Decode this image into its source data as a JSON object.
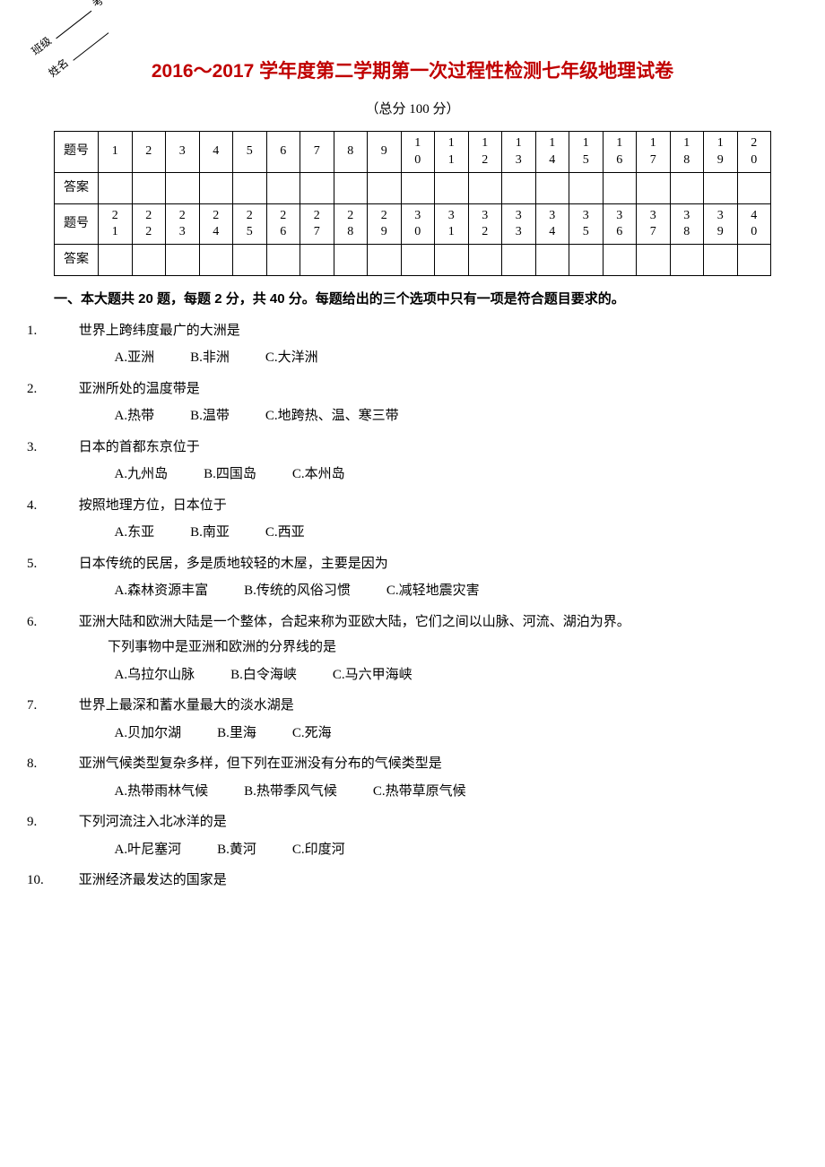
{
  "binding": {
    "class_label": "班级",
    "exam_no_label": "考号",
    "name_label": "姓名"
  },
  "title": "2016～2017 学年度第二学期第一次过程性检测七年级地理试卷",
  "subtitle": "（总分 100 分）",
  "answer_sheet": {
    "row_labels": {
      "number": "题号",
      "answer": "答案"
    },
    "row1_numbers": [
      "1",
      "2",
      "3",
      "4",
      "5",
      "6",
      "7",
      "8",
      "9",
      "1\n0",
      "1\n1",
      "1\n2",
      "1\n3",
      "1\n4",
      "1\n5",
      "1\n6",
      "1\n7",
      "1\n8",
      "1\n9",
      "2\n0"
    ],
    "row2_numbers": [
      "2\n1",
      "2\n2",
      "2\n3",
      "2\n4",
      "2\n5",
      "2\n6",
      "2\n7",
      "2\n8",
      "2\n9",
      "3\n0",
      "3\n1",
      "3\n2",
      "3\n3",
      "3\n4",
      "3\n5",
      "3\n6",
      "3\n7",
      "3\n8",
      "3\n9",
      "4\n0"
    ]
  },
  "section1_header": "一、本大题共 20 题，每题 2 分，共 40 分。每题给出的三个选项中只有一项是符合题目要求的。",
  "questions": [
    {
      "num": "1.",
      "stem": "世界上跨纬度最广的大洲是",
      "opts": [
        "A.亚洲",
        "B.非洲",
        "C.大洋洲"
      ]
    },
    {
      "num": "2.",
      "stem": "亚洲所处的温度带是",
      "opts": [
        "A.热带",
        "B.温带",
        "C.地跨热、温、寒三带"
      ]
    },
    {
      "num": "3.",
      "stem": "日本的首都东京位于",
      "opts": [
        "A.九州岛",
        "B.四国岛",
        "C.本州岛"
      ]
    },
    {
      "num": "4.",
      "stem": "按照地理方位，日本位于",
      "opts": [
        "A.东亚",
        "B.南亚",
        "C.西亚"
      ]
    },
    {
      "num": "5.",
      "stem": "日本传统的民居，多是质地较轻的木屋，主要是因为",
      "opts": [
        "A.森林资源丰富",
        "B.传统的风俗习惯",
        "C.减轻地震灾害"
      ]
    },
    {
      "num": "6.",
      "stem": "亚洲大陆和欧洲大陆是一个整体，合起来称为亚欧大陆，它们之间以山脉、河流、湖泊为界。",
      "stem2": "下列事物中是亚洲和欧洲的分界线的是",
      "opts": [
        "A.乌拉尔山脉",
        "B.白令海峡",
        "C.马六甲海峡"
      ]
    },
    {
      "num": "7.",
      "stem": "世界上最深和蓄水量最大的淡水湖是",
      "opts": [
        "A.贝加尔湖",
        "B.里海",
        "C.死海"
      ]
    },
    {
      "num": "8.",
      "stem": "亚洲气候类型复杂多样，但下列在亚洲没有分布的气候类型是",
      "opts": [
        "A.热带雨林气候",
        "B.热带季风气候",
        "C.热带草原气候"
      ]
    },
    {
      "num": "9.",
      "stem": "下列河流注入北冰洋的是",
      "opts": [
        "A.叶尼塞河",
        "B.黄河",
        "C.印度河"
      ]
    },
    {
      "num": "10.",
      "stem": "亚洲经济最发达的国家是",
      "opts": []
    }
  ],
  "colors": {
    "title": "#c00000",
    "text": "#000000",
    "border": "#000000",
    "background": "#ffffff"
  }
}
